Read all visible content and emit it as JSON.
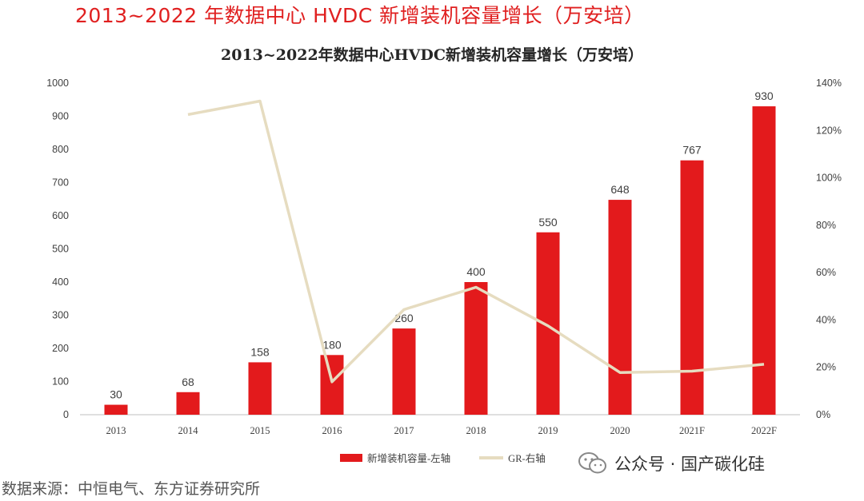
{
  "headline": "2013~2022 年数据中心 HVDC 新增装机容量增长（万安培）",
  "source": "数据来源：中恒电气、东方证券研究所",
  "watermark": {
    "text": "公众号 · 国产碳化硅",
    "icon": "wechat-icon"
  },
  "colors": {
    "bar": "#e31a1c",
    "line": "#e6dcc0",
    "headline": "#e02020"
  },
  "chart_data": {
    "type": "bar",
    "title": "2013~2022年数据中心HVDC新增装机容量增长（万安培）",
    "categories": [
      "2013",
      "2014",
      "2015",
      "2016",
      "2017",
      "2018",
      "2019",
      "2020",
      "2021F",
      "2022F"
    ],
    "series": [
      {
        "name": "新增装机容量-左轴",
        "type": "bar",
        "axis": "left",
        "values": [
          30,
          68,
          158,
          180,
          260,
          400,
          550,
          648,
          767,
          930
        ]
      },
      {
        "name": "GR-右轴",
        "type": "line",
        "axis": "right",
        "values": [
          null,
          126.7,
          132.4,
          13.9,
          44.4,
          53.8,
          37.5,
          17.8,
          18.4,
          21.3
        ]
      }
    ],
    "y_left": {
      "min": 0,
      "max": 1000,
      "ticks": [
        "0",
        "100",
        "200",
        "300",
        "400",
        "500",
        "600",
        "700",
        "800",
        "900",
        "1000"
      ]
    },
    "y_right": {
      "min": 0,
      "max": 140,
      "ticks": [
        "0%",
        "20%",
        "40%",
        "60%",
        "80%",
        "100%",
        "120%",
        "140%"
      ]
    },
    "grid": false,
    "legend": "bottom"
  }
}
